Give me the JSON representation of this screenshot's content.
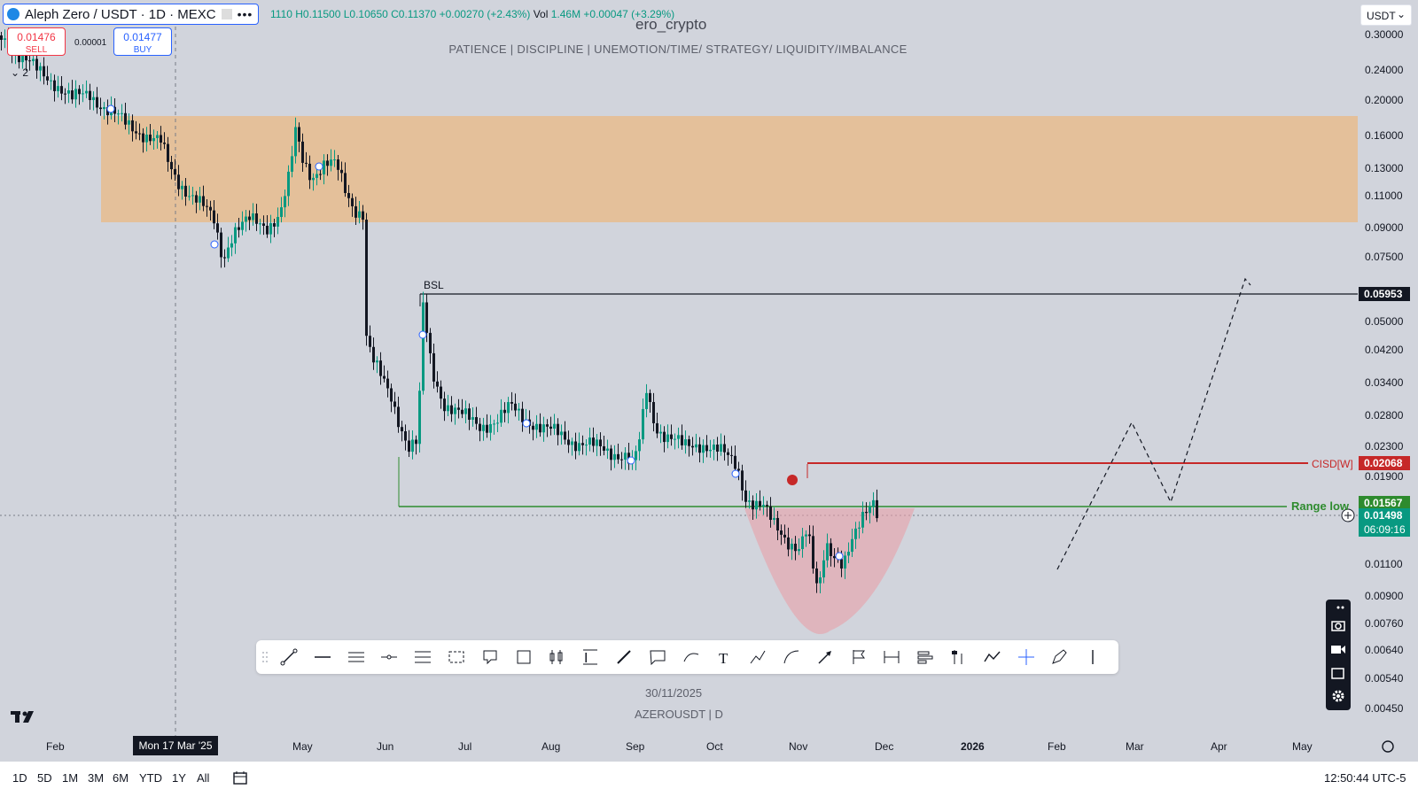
{
  "header": {
    "symbol": "Aleph Zero / USDT · 1D · MEXC",
    "ohlc_text": "1110 H0.11500 L0.10650 C0.11370 +0.00270 (+2.43%)",
    "vol_label": "Vol",
    "vol_text": "1.46M +0.00047 (+3.29%)",
    "sell_price": "0.01476",
    "sell_label": "SELL",
    "buy_price": "0.01477",
    "buy_label": "BUY",
    "spread": "0.00001",
    "indicators_count": "2"
  },
  "watermark": {
    "author": "ero_crypto",
    "tagline": "PATIENCE   |   DISCIPLINE   |   UNEMOTION/TIME/ STRATEGY/ LIQUIDITY/IMBALANCE",
    "date": "30/11/2025",
    "symbol_tf": "AZEROUSDT | D"
  },
  "price_axis": {
    "currency": "USDT",
    "ticks": [
      "0.30000",
      "0.24000",
      "0.20000",
      "0.16000",
      "0.13000",
      "0.11000",
      "0.09000",
      "0.07500",
      "0.05000",
      "0.04200",
      "0.03400",
      "0.02800",
      "0.02300",
      "0.01900",
      "0.01100",
      "0.00900",
      "0.00760",
      "0.00640",
      "0.00540",
      "0.00450"
    ],
    "bsl_level": "0.05953",
    "cisd_level": "0.02068",
    "range_level": "0.01567",
    "last_price": "0.01498",
    "countdown": "06:09:16"
  },
  "annotations": {
    "bsl": "BSL",
    "cisd": "CISD[W]",
    "range": "Range low"
  },
  "time_axis": {
    "labels": [
      "Feb",
      "May",
      "Jun",
      "Jul",
      "Aug",
      "Sep",
      "Oct",
      "Nov",
      "Dec",
      "2026",
      "Feb",
      "Mar",
      "Apr",
      "May"
    ],
    "crosshair": "Mon 17 Mar '25"
  },
  "timeframes": [
    "1D",
    "5D",
    "1M",
    "3M",
    "6M",
    "YTD",
    "1Y",
    "All"
  ],
  "clock": "12:50:44 UTC-5",
  "colors": {
    "up": "#089981",
    "down": "#131722",
    "supply_zone": "#e8bc8e",
    "cisd_red": "#c62828",
    "range_green": "#2e8b2e",
    "cup_pink": "#e8a0a8"
  },
  "icons": {
    "drawing_tools": [
      "trend-line-icon",
      "horizontal-ray-icon",
      "parallel-channel-icon",
      "horizontal-line-icon",
      "fib-retracement-icon",
      "fib-channel-icon",
      "rectangle-icon",
      "rotated-rectangle-icon",
      "long-position-icon",
      "price-range-icon",
      "brush-icon",
      "callout-icon",
      "curve-icon",
      "text-icon",
      "path-icon",
      "arc-icon",
      "arrow-icon",
      "flag-icon",
      "date-range-icon",
      "volume-profile-icon",
      "anchored-vwap-icon",
      "zigzag-icon",
      "crosshair-icon",
      "pen-icon",
      "vertical-line-icon"
    ]
  }
}
